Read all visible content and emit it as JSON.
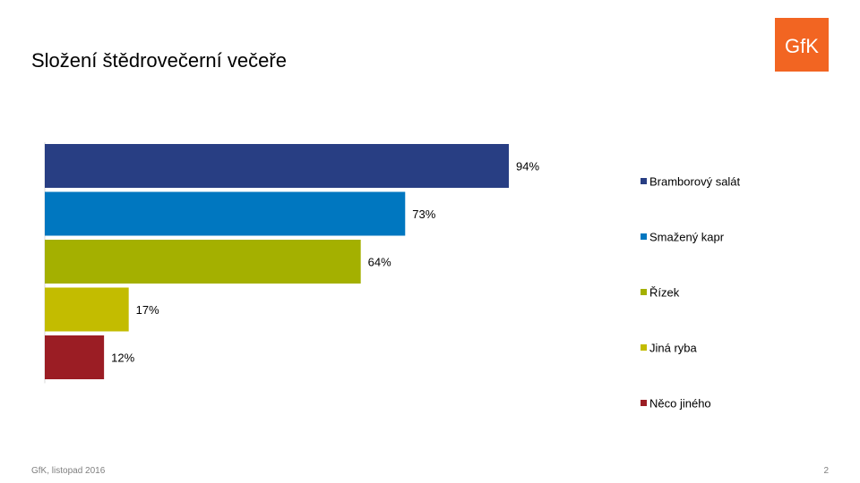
{
  "slide": {
    "title": "Složení štědrovečerní večeře",
    "footer": "GfK, listopad 2016",
    "page_number": "2",
    "logo_text": "GfK"
  },
  "colors": {
    "logo_bg": "#f26522"
  },
  "chart_data": {
    "type": "bar",
    "orientation": "horizontal",
    "title": "",
    "categories": [
      "Bramborový salát",
      "Smažený kapr",
      "Řízek",
      "Jiná ryba",
      "Něco jiného"
    ],
    "values": [
      94,
      73,
      64,
      17,
      12
    ],
    "value_labels": [
      "94%",
      "73%",
      "64%",
      "17%",
      "12%"
    ],
    "colors": [
      "#283e83",
      "#0077c0",
      "#a4b000",
      "#c3bc00",
      "#9b1d24"
    ],
    "xlim": [
      0,
      100
    ],
    "grid": false,
    "legend": {
      "position": "right"
    }
  }
}
